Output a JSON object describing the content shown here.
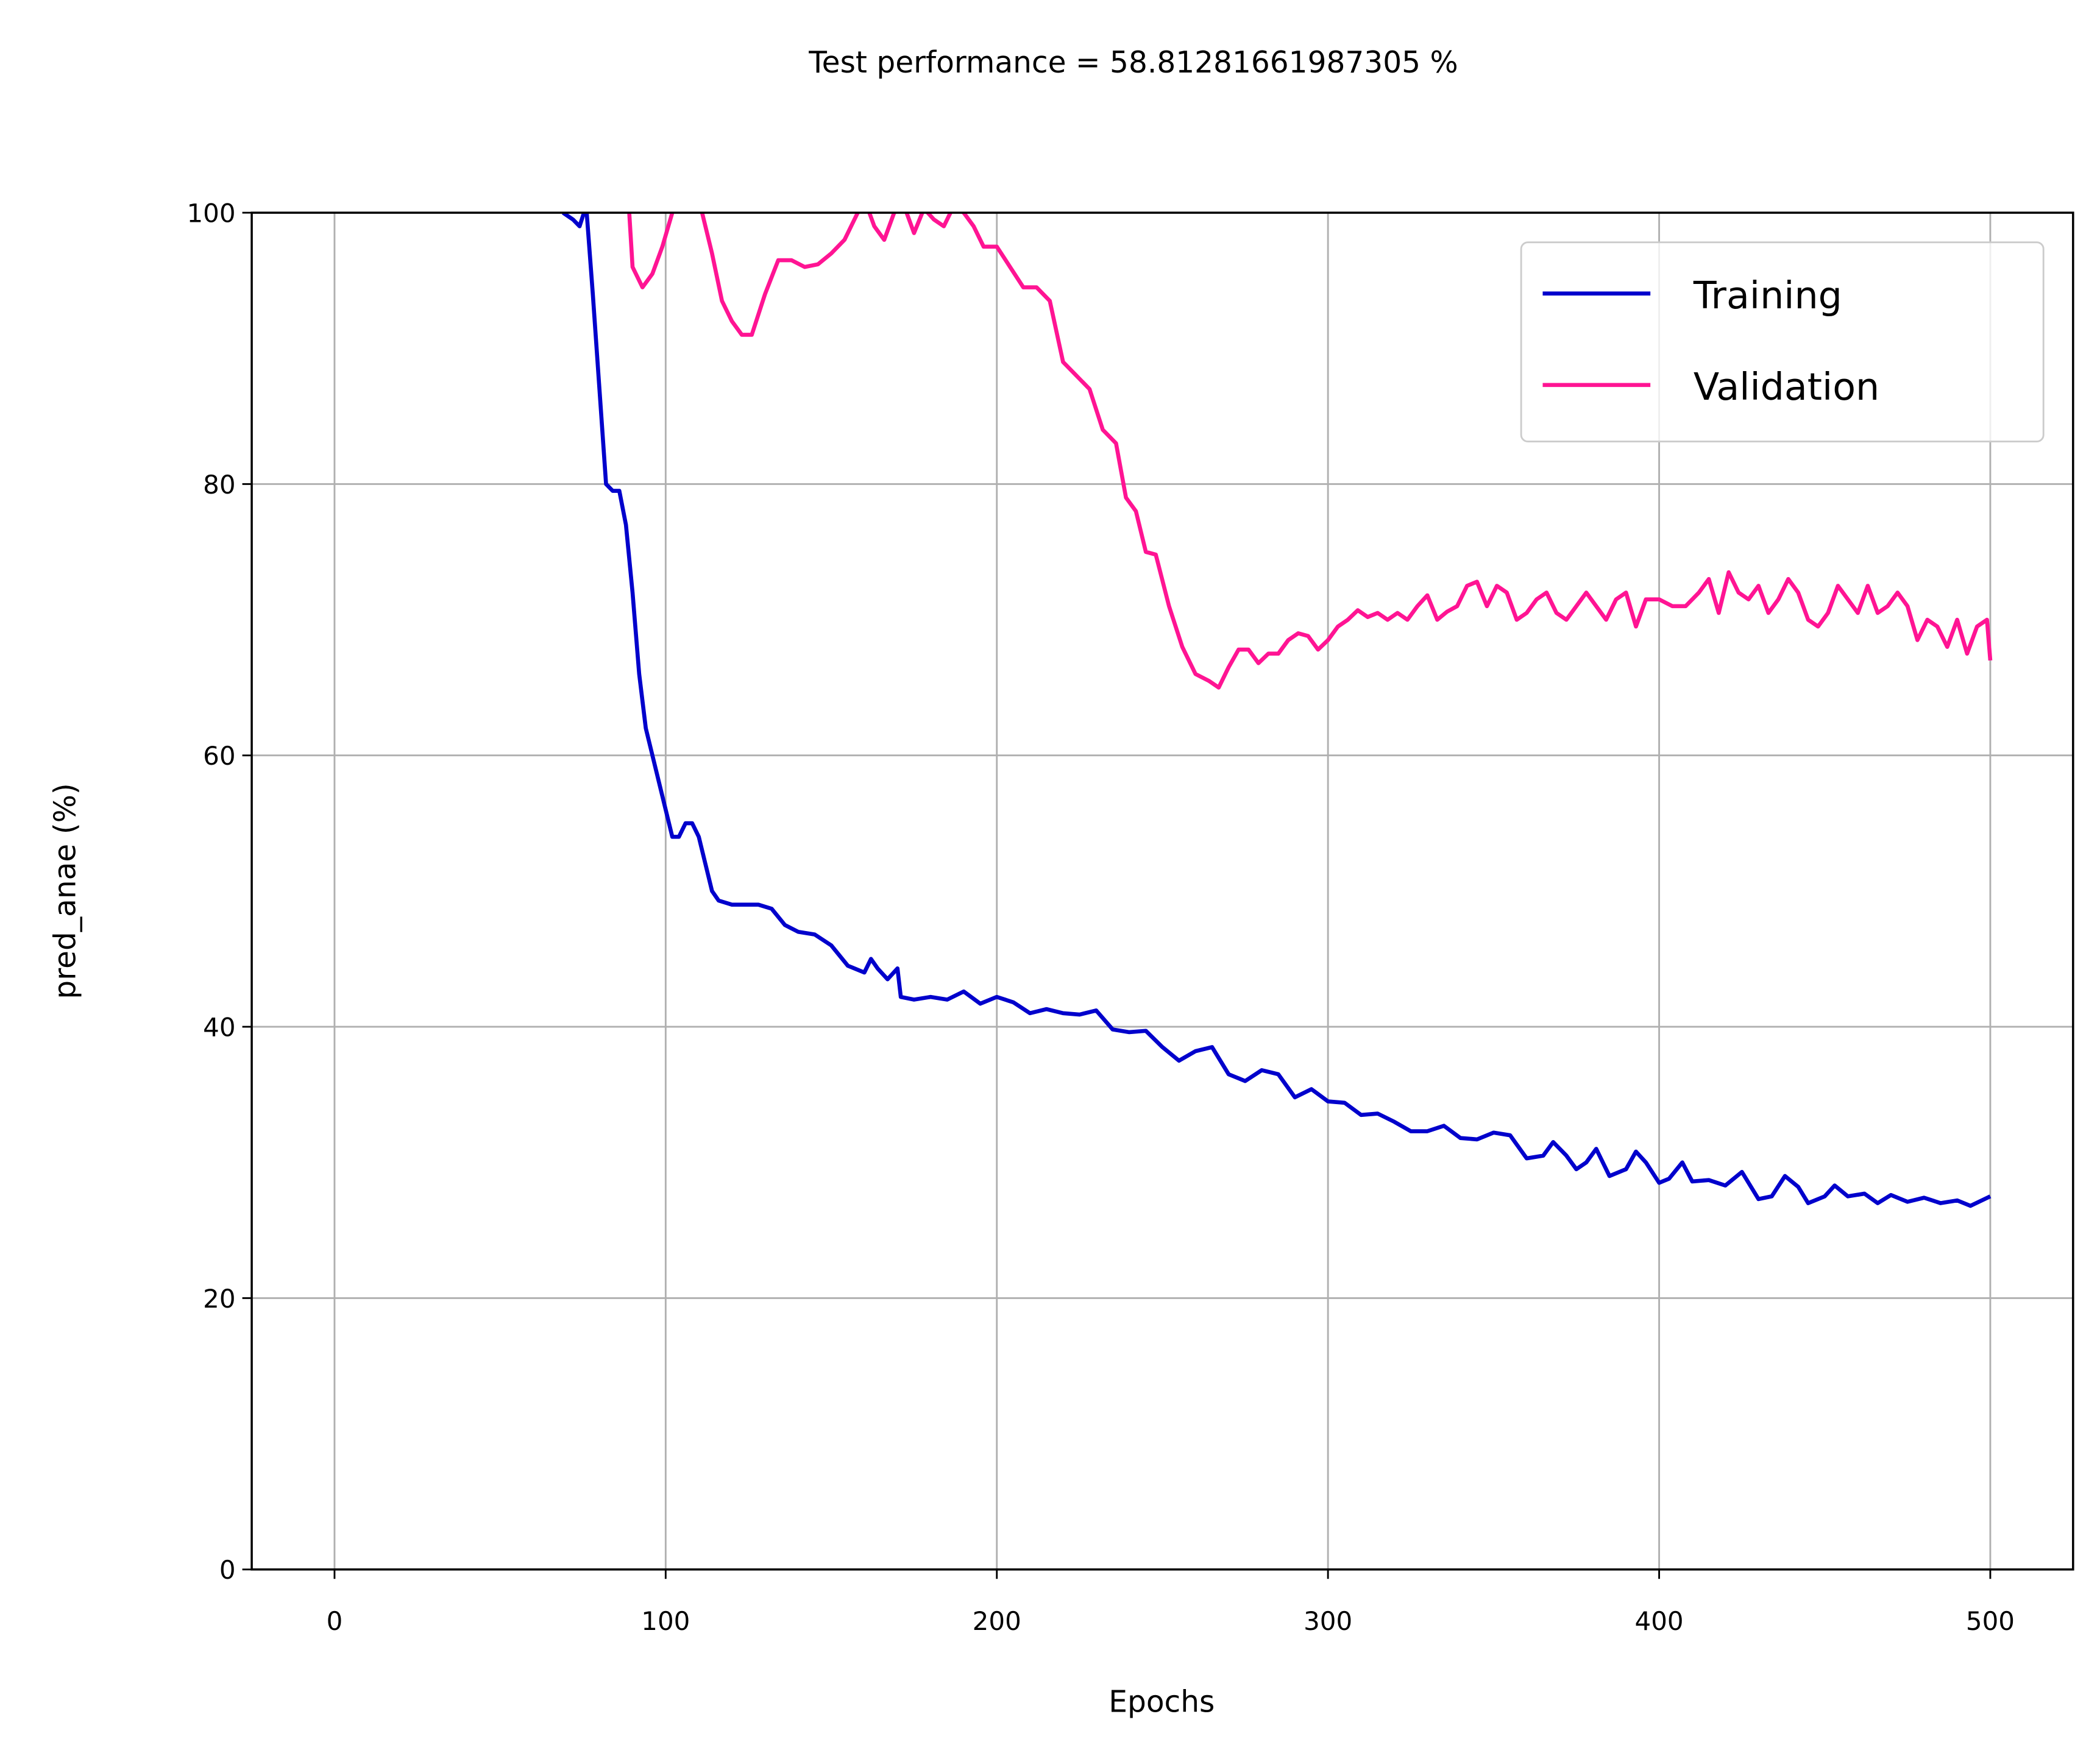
{
  "chart_data": {
    "type": "line",
    "title": "Test performance = 58.81281661987305 %",
    "xlabel": "Epochs",
    "ylabel": "pred_anae (%)",
    "xlim": [
      -25,
      525
    ],
    "ylim": [
      0,
      100
    ],
    "xticks": [
      0,
      100,
      200,
      300,
      400,
      500
    ],
    "yticks": [
      0,
      20,
      40,
      60,
      80,
      100
    ],
    "grid": true,
    "legend": "upper right",
    "series": [
      {
        "name": "Training",
        "color": "#0000cc",
        "x": [
          69,
          72,
          74,
          76,
          78,
          80,
          82,
          84,
          86,
          88,
          90,
          92,
          94,
          96,
          98,
          100,
          102,
          104,
          106,
          108,
          110,
          112,
          114,
          116,
          120,
          124,
          128,
          132,
          136,
          140,
          145,
          150,
          155,
          160,
          162,
          164,
          167,
          170,
          171,
          175,
          180,
          185,
          190,
          195,
          200,
          205,
          210,
          215,
          220,
          225,
          230,
          235,
          240,
          245,
          250,
          255,
          260,
          265,
          270,
          275,
          280,
          285,
          290,
          295,
          300,
          305,
          310,
          315,
          320,
          325,
          330,
          335,
          340,
          345,
          350,
          355,
          360,
          365,
          368,
          372,
          375,
          378,
          381,
          385,
          390,
          393,
          396,
          400,
          403,
          407,
          410,
          415,
          420,
          425,
          430,
          434,
          438,
          442,
          445,
          450,
          453,
          457,
          462,
          466,
          470,
          475,
          480,
          485,
          490,
          494,
          500
        ],
        "values": [
          100,
          99.5,
          99,
          100.5,
          94,
          87,
          80,
          79.5,
          79.5,
          77,
          72,
          66,
          62,
          60,
          58,
          56,
          54,
          54,
          55,
          55,
          54,
          52,
          50,
          49.3,
          49,
          49,
          49,
          48.7,
          47.5,
          47,
          46.8,
          46,
          44.5,
          44,
          45,
          44.3,
          43.5,
          44.3,
          42.2,
          42,
          42.2,
          42,
          42.6,
          41.7,
          42.2,
          41.8,
          41,
          41.3,
          41,
          40.9,
          41.2,
          39.8,
          39.6,
          39.7,
          38.5,
          37.5,
          38.2,
          38.5,
          36.5,
          36,
          36.8,
          36.5,
          34.8,
          35.4,
          34.5,
          34.4,
          33.5,
          33.6,
          33,
          32.3,
          32.3,
          32.7,
          31.8,
          31.7,
          32.2,
          32,
          30.3,
          30.5,
          31.5,
          30.5,
          29.5,
          30,
          31,
          29,
          29.5,
          30.8,
          30,
          28.5,
          28.8,
          30,
          28.6,
          28.7,
          28.3,
          29.3,
          27.3,
          27.5,
          29,
          28.2,
          27,
          27.5,
          28.3,
          27.5,
          27.7,
          27,
          27.6,
          27.1,
          27.4,
          27,
          27.2,
          26.8,
          27.5
        ]
      },
      {
        "name": "Validation",
        "color": "#ff1493",
        "x": [
          88,
          90,
          93,
          96,
          99,
          102,
          104,
          106,
          108,
          111,
          114,
          117,
          120,
          123,
          126,
          130,
          134,
          138,
          142,
          146,
          150,
          154,
          158,
          160,
          163,
          166,
          169,
          172,
          175,
          178,
          181,
          184,
          187,
          190,
          193,
          196,
          200,
          204,
          208,
          212,
          216,
          220,
          224,
          228,
          232,
          236,
          239,
          242,
          245,
          248,
          252,
          256,
          260,
          264,
          267,
          270,
          273,
          276,
          279,
          282,
          285,
          288,
          291,
          294,
          297,
          300,
          303,
          306,
          309,
          312,
          315,
          318,
          321,
          324,
          327,
          330,
          333,
          336,
          339,
          342,
          345,
          348,
          351,
          354,
          357,
          360,
          363,
          366,
          369,
          372,
          375,
          378,
          381,
          384,
          387,
          390,
          393,
          396,
          400,
          404,
          408,
          412,
          415,
          418,
          421,
          424,
          427,
          430,
          433,
          436,
          439,
          442,
          445,
          448,
          451,
          454,
          457,
          460,
          463,
          466,
          469,
          472,
          475,
          478,
          481,
          484,
          487,
          490,
          493,
          496,
          499,
          500
        ],
        "values": [
          104,
          96,
          94.5,
          95.5,
          97.5,
          100,
          103,
          104,
          103,
          100,
          97,
          93.5,
          92,
          91,
          91,
          94,
          96.5,
          96.5,
          96,
          96.2,
          97,
          98,
          100,
          101,
          99,
          98,
          100,
          100.5,
          98.5,
          100.3,
          99.5,
          99,
          100.5,
          100,
          99,
          97.5,
          97.5,
          96,
          94.5,
          94.5,
          93.5,
          89,
          88,
          87,
          84,
          83,
          79,
          78,
          75,
          74.8,
          71,
          68,
          66,
          65.5,
          65,
          66.5,
          67.8,
          67.8,
          66.8,
          67.5,
          67.5,
          68.5,
          69,
          68.8,
          67.8,
          68.5,
          69.5,
          70,
          70.7,
          70.2,
          70.5,
          70,
          70.5,
          70,
          71,
          71.8,
          70,
          70.6,
          71,
          72.5,
          72.8,
          71,
          72.5,
          72,
          70,
          70.5,
          71.5,
          72,
          70.5,
          70,
          71,
          72,
          71,
          70,
          71.5,
          72,
          69.5,
          71.5,
          71.5,
          71,
          71,
          72,
          73,
          70.5,
          73.5,
          72,
          71.5,
          72.5,
          70.5,
          71.5,
          73,
          72,
          70,
          69.5,
          70.5,
          72.5,
          71.5,
          70.5,
          72.5,
          70.5,
          71,
          72,
          71,
          68.5,
          70,
          69.5,
          68,
          70,
          67.5,
          69.5,
          70,
          67
        ]
      }
    ]
  }
}
